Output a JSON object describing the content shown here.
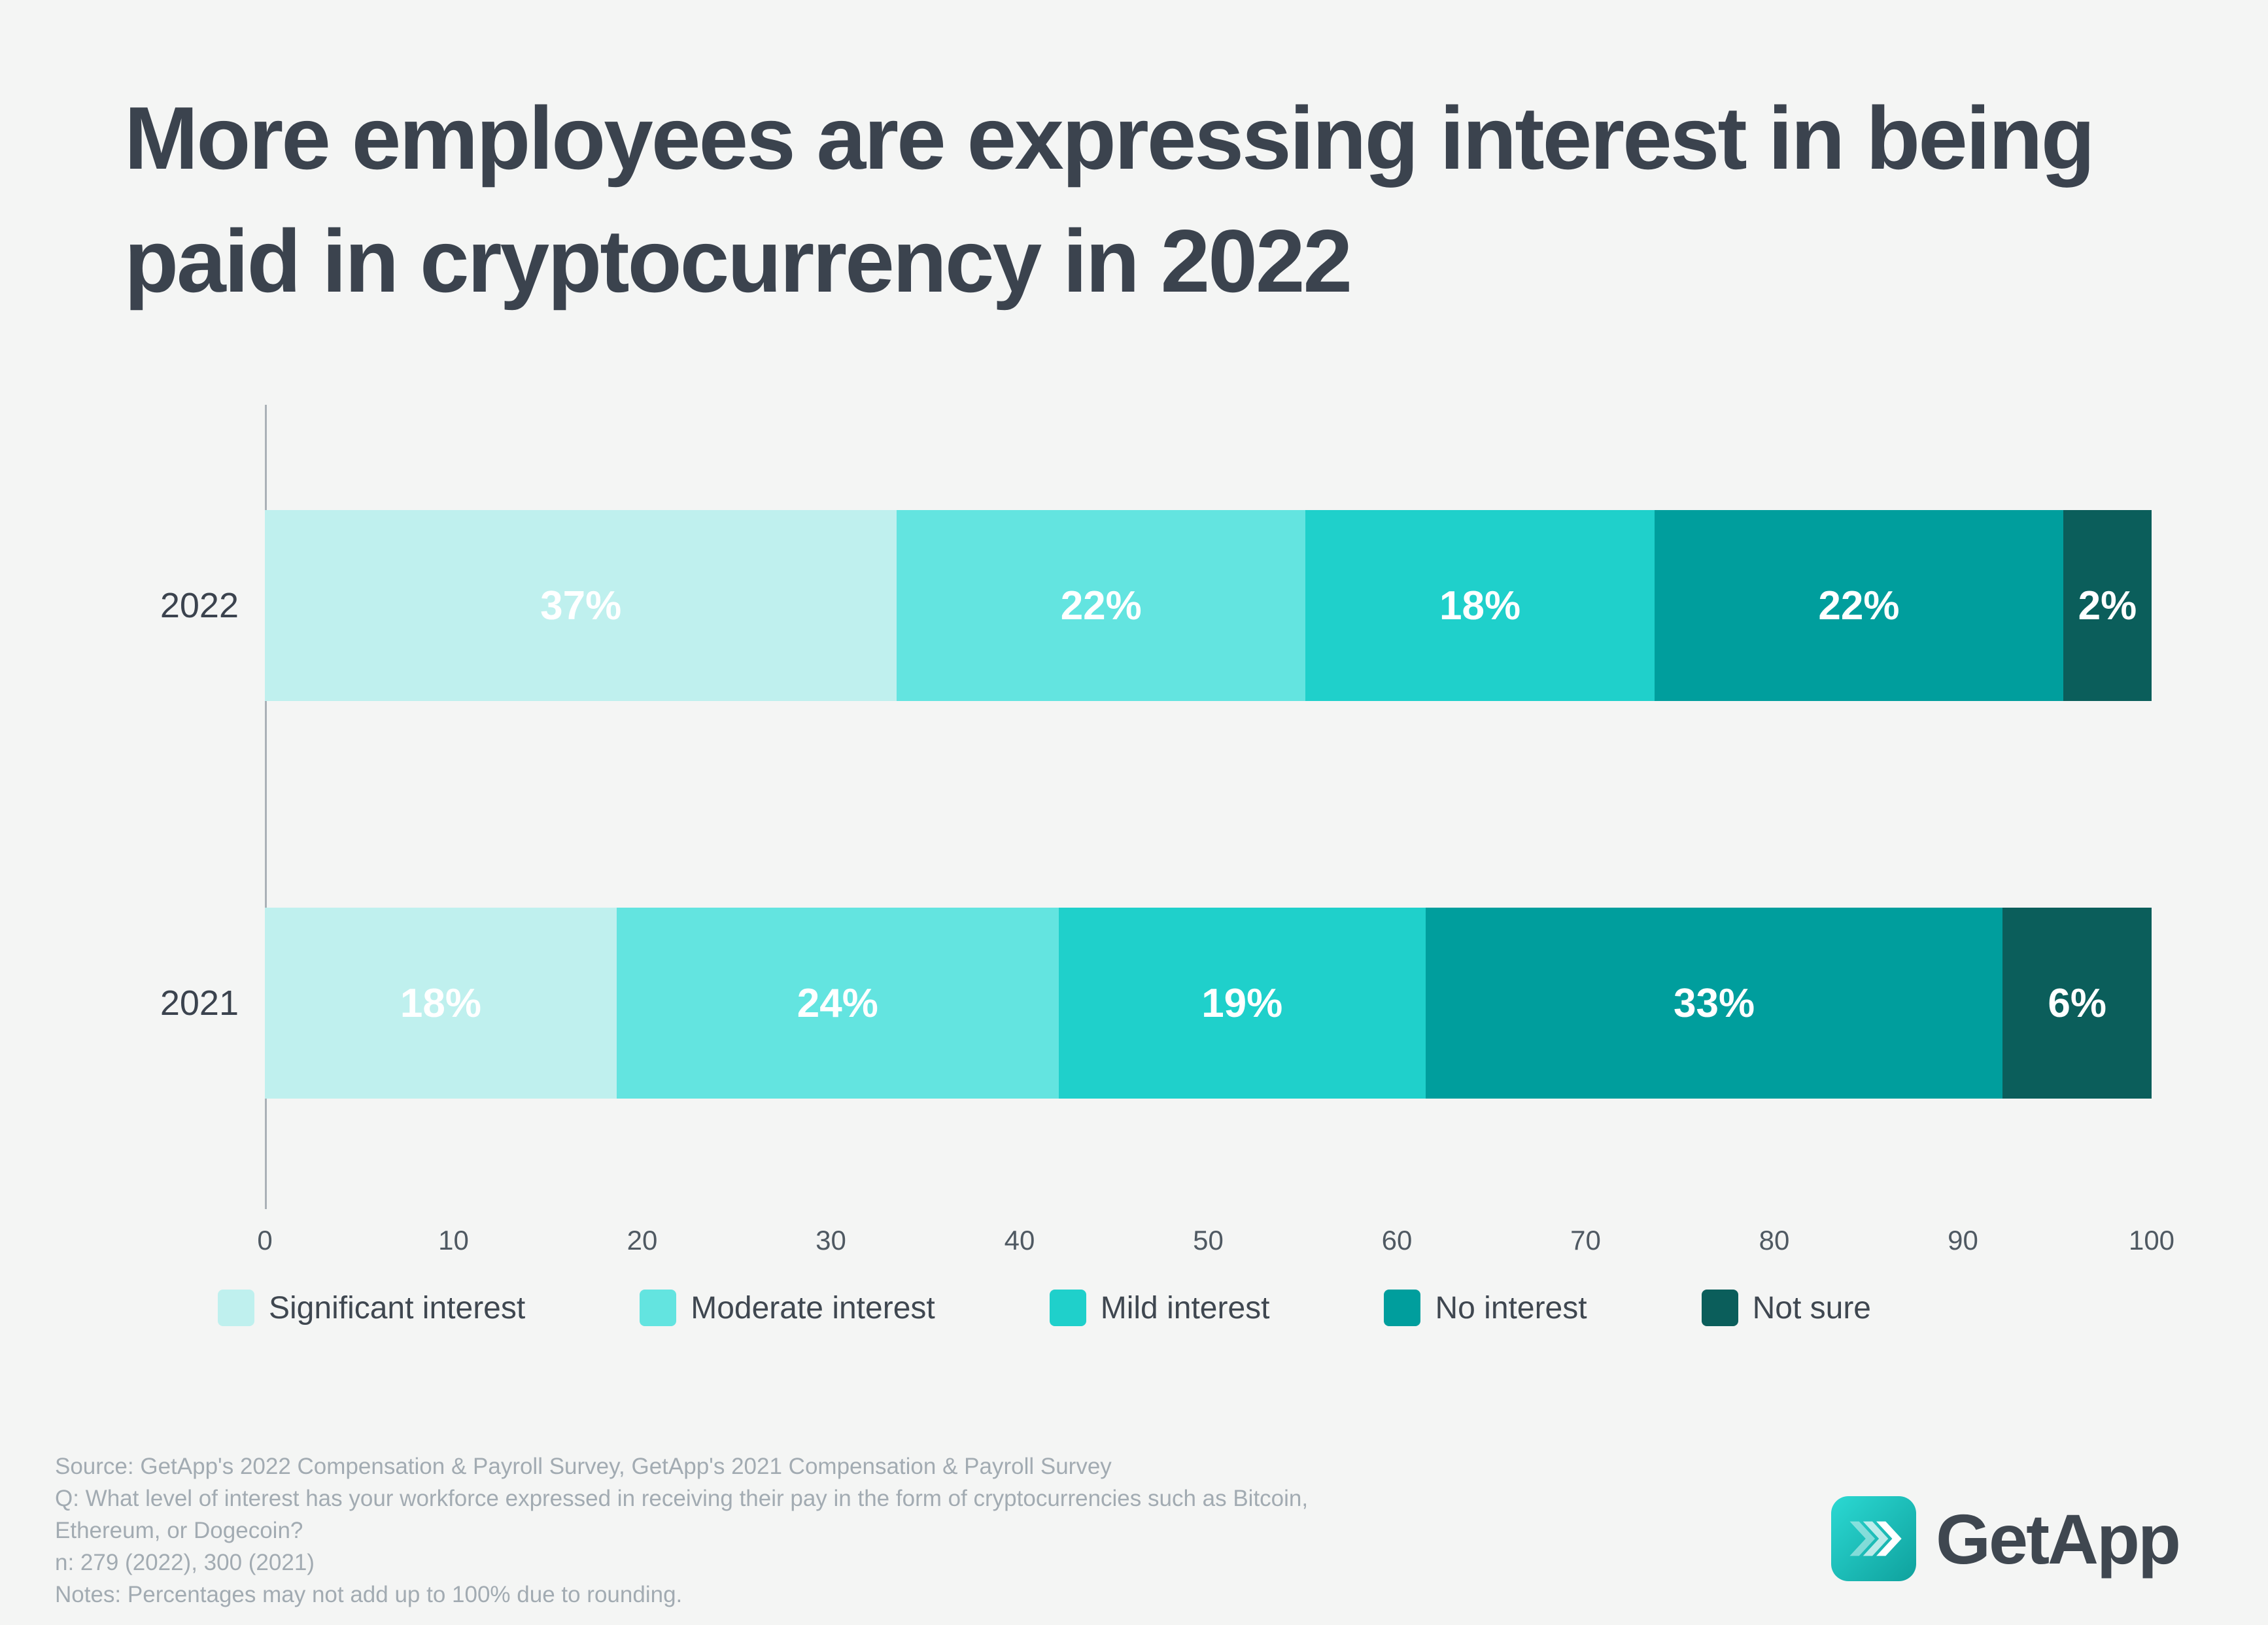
{
  "title": "More employees are expressing interest in being paid in cryptocurrency in 2022",
  "chart_data": {
    "type": "bar",
    "orientation": "horizontal",
    "stacked": true,
    "categories": [
      "2022",
      "2021"
    ],
    "series": [
      {
        "name": "Significant interest",
        "color": "#bff0ee",
        "values": [
          37,
          18
        ]
      },
      {
        "name": "Moderate interest",
        "color": "#63e4e0",
        "values": [
          22,
          24
        ]
      },
      {
        "name": "Mild interest",
        "color": "#1fd0cb",
        "values": [
          18,
          19
        ]
      },
      {
        "name": "No interest",
        "color": "#009e9d",
        "values": [
          22,
          33
        ]
      },
      {
        "name": "Not sure",
        "color": "#0b5e5b",
        "values": [
          2,
          6
        ]
      }
    ],
    "value_suffix": "%",
    "xlim": [
      0,
      100
    ],
    "x_ticks": [
      0,
      10,
      20,
      30,
      40,
      50,
      60,
      70,
      80,
      90,
      100
    ],
    "grid": false,
    "legend_position": "bottom"
  },
  "footer": {
    "source_lines": [
      "Source: GetApp's 2022 Compensation & Payroll Survey, GetApp's 2021 Compensation & Payroll Survey",
      "Q: What level of interest has your workforce expressed in receiving their pay in the form of cryptocurrencies such as Bitcoin,",
      "Ethereum, or Dogecoin?",
      "n: 279 (2022), 300 (2021)",
      "Notes: Percentages may not add up to 100% due to rounding."
    ],
    "brand": "GetApp"
  },
  "colors": {
    "background": "#f4f5f4",
    "title": "#3b434e",
    "axis": "#aab1b7",
    "tick_label": "#4f5962",
    "bar_value_label": "#ffffff",
    "source_text": "#a2abb2",
    "brand_teal": "#12b5b0"
  }
}
